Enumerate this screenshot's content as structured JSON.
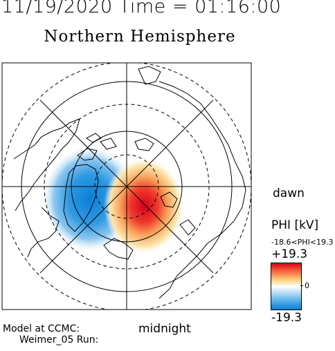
{
  "header": {
    "timestamp": "11/19/2020 Time = 01:16:00",
    "hemisphere": "Northern Hemisphere"
  },
  "map": {
    "projection": "polar",
    "side_labels": {
      "dawn": "dawn",
      "midnight": "midnight"
    },
    "potential_pattern": {
      "negative_cell": "dusk side, blue",
      "positive_cell": "dawn side, red"
    }
  },
  "colorbar": {
    "title": "PHI [kV]",
    "range_text": "-18.6<PHI<19.3",
    "max_label": "+19.3",
    "zero_label": "0",
    "min_label": "-19.3",
    "max_value": 19.3,
    "min_value": -19.3,
    "max_color": "#d8001c",
    "zero_color": "#ffffff",
    "min_color": "#0a7fd6"
  },
  "footer": {
    "model_line1": "Model at CCMC:",
    "model_line2": "Weimer_05 Run:"
  }
}
